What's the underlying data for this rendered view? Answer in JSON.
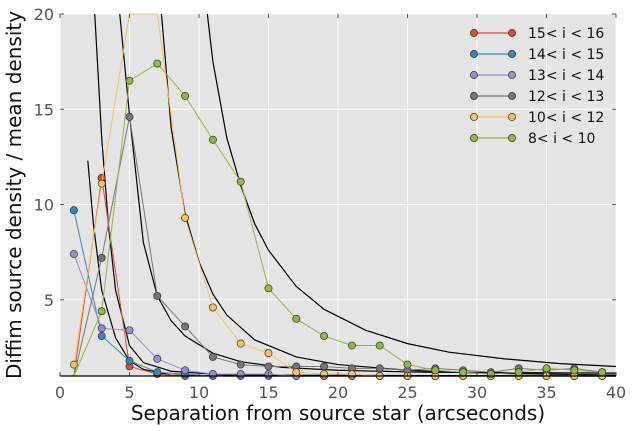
{
  "chart_data": {
    "type": "line",
    "xlabel": "Separation from source star (arcseconds)",
    "ylabel": "Diffim source density / mean density",
    "xlim": [
      0,
      40
    ],
    "ylim": [
      1,
      20
    ],
    "x_ticks": [
      0,
      5,
      10,
      15,
      20,
      25,
      30,
      35,
      40
    ],
    "y_ticks": [
      5,
      10,
      15,
      20
    ],
    "grid": true,
    "legend_position": "top-right",
    "series": [
      {
        "name": "15< i < 16",
        "color": "#e24a33",
        "x": [
          1,
          3,
          5,
          7,
          9,
          11,
          13,
          15,
          17,
          19,
          21,
          23,
          25,
          27,
          29,
          31,
          33,
          35,
          37,
          39
        ],
        "y": [
          0.5,
          11.4,
          1.5,
          1.1,
          1.0,
          0.95,
          0.95,
          0.95,
          0.95,
          0.95,
          0.95,
          1.0,
          0.95,
          0.95,
          0.95,
          0.95,
          0.95,
          0.95,
          0.95,
          0.95
        ]
      },
      {
        "name": "14< i < 15",
        "color": "#348abd",
        "x": [
          1,
          3,
          5,
          7,
          9,
          11,
          13,
          15,
          17,
          19,
          21,
          23,
          25,
          27,
          29,
          31,
          33,
          35,
          37,
          39
        ],
        "y": [
          9.7,
          3.1,
          1.8,
          1.2,
          1.1,
          1.0,
          1.0,
          1.0,
          1.0,
          1.0,
          1.0,
          1.0,
          1.0,
          1.0,
          1.0,
          1.0,
          1.0,
          1.0,
          1.0,
          1.0
        ]
      },
      {
        "name": "13< i < 14",
        "color": "#988ed5",
        "x": [
          1,
          3,
          5,
          7,
          9,
          11,
          13,
          15,
          17,
          19,
          21,
          23,
          25,
          27,
          29,
          31,
          33,
          35,
          37,
          39
        ],
        "y": [
          7.4,
          3.5,
          3.4,
          1.9,
          1.3,
          1.1,
          1.1,
          1.1,
          1.0,
          1.0,
          1.0,
          1.0,
          1.0,
          1.0,
          1.0,
          1.0,
          1.0,
          1.0,
          1.0,
          1.0
        ]
      },
      {
        "name": "12< i < 13",
        "color": "#777777",
        "x": [
          1,
          3,
          5,
          7,
          9,
          11,
          13,
          15,
          17,
          19,
          21,
          23,
          25,
          27,
          29,
          31,
          33,
          35,
          37,
          39
        ],
        "y": [
          0.4,
          7.2,
          14.6,
          5.2,
          3.6,
          2.0,
          1.6,
          1.5,
          1.5,
          1.5,
          1.4,
          1.4,
          1.3,
          1.4,
          1.3,
          1.2,
          1.4,
          1.3,
          1.4,
          1.2
        ]
      },
      {
        "name": "10< i < 12",
        "color": "#fbc15e",
        "x": [
          1,
          3,
          5,
          7,
          9,
          11,
          13,
          15,
          17,
          19,
          21,
          23,
          25,
          27,
          29,
          31,
          33,
          35,
          37,
          39
        ],
        "y": [
          1.6,
          11.1,
          22.0,
          22.0,
          9.3,
          4.6,
          2.7,
          2.2,
          1.2,
          1.1,
          1.1,
          1.0,
          1.0,
          1.0,
          1.0,
          1.0,
          1.0,
          1.0,
          1.0,
          1.0
        ]
      },
      {
        "name": "8< i < 10",
        "color": "#8eba42",
        "x": [
          1,
          3,
          5,
          7,
          9,
          11,
          13,
          15,
          17,
          19,
          21,
          23,
          25,
          27,
          29,
          31,
          33,
          35,
          37,
          39
        ],
        "y": [
          0.5,
          4.4,
          16.5,
          17.4,
          15.7,
          13.4,
          11.2,
          5.6,
          4.0,
          3.1,
          2.6,
          2.6,
          1.6,
          1.3,
          1.2,
          1.1,
          1.2,
          1.4,
          1.3,
          1.2
        ]
      }
    ],
    "fit_curves": [
      {
        "points": [
          [
            2.0,
            12.3
          ],
          [
            2.4,
            9.0
          ],
          [
            3.0,
            5.5
          ],
          [
            4.0,
            3.0
          ],
          [
            5.0,
            1.8
          ],
          [
            6.0,
            1.35
          ],
          [
            8.0,
            1.05
          ],
          [
            12.0,
            1.0
          ],
          [
            40.0,
            1.0
          ]
        ]
      },
      {
        "points": [
          [
            2.5,
            20.0
          ],
          [
            3.0,
            13.5
          ],
          [
            3.5,
            8.8
          ],
          [
            4.0,
            5.5
          ],
          [
            5.0,
            2.6
          ],
          [
            6.0,
            1.7
          ],
          [
            8.0,
            1.25
          ],
          [
            12.0,
            1.05
          ],
          [
            40.0,
            1.0
          ]
        ]
      },
      {
        "points": [
          [
            4.3,
            20.0
          ],
          [
            5.0,
            14.7
          ],
          [
            6.0,
            8.0
          ],
          [
            7.0,
            5.2
          ],
          [
            8.0,
            3.9
          ],
          [
            9.0,
            3.1
          ],
          [
            11.0,
            2.2
          ],
          [
            13.0,
            1.75
          ],
          [
            16.0,
            1.45
          ],
          [
            20.0,
            1.3
          ],
          [
            26.0,
            1.2
          ],
          [
            40.0,
            1.15
          ]
        ]
      },
      {
        "points": [
          [
            7.3,
            20.0
          ],
          [
            8.0,
            14.0
          ],
          [
            9.0,
            9.5
          ],
          [
            10.0,
            7.0
          ],
          [
            11.0,
            5.3
          ],
          [
            12.0,
            4.2
          ],
          [
            14.0,
            2.9
          ],
          [
            17.0,
            2.0
          ],
          [
            20.0,
            1.6
          ],
          [
            25.0,
            1.3
          ],
          [
            30.0,
            1.15
          ],
          [
            40.0,
            1.05
          ]
        ]
      },
      {
        "points": [
          [
            10.6,
            20.0
          ],
          [
            11.0,
            17.5
          ],
          [
            12.0,
            13.5
          ],
          [
            13.0,
            11.0
          ],
          [
            14.0,
            9.0
          ],
          [
            15.0,
            7.6
          ],
          [
            17.0,
            5.7
          ],
          [
            19.0,
            4.5
          ],
          [
            22.0,
            3.4
          ],
          [
            25.0,
            2.7
          ],
          [
            28.0,
            2.25
          ],
          [
            32.0,
            1.9
          ],
          [
            36.0,
            1.65
          ],
          [
            40.0,
            1.5
          ]
        ]
      }
    ]
  }
}
